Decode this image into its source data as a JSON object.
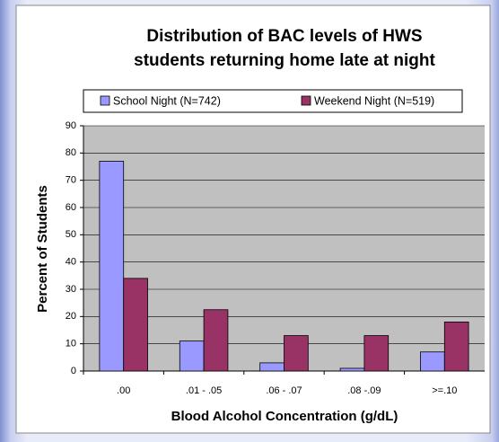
{
  "chart_data": {
    "type": "bar",
    "title": [
      "Distribution of BAC levels of HWS",
      "students returning home late at night"
    ],
    "categories": [
      ".00",
      ".01 - .05",
      ".06 - .07",
      ".08 -.09",
      ">=.10"
    ],
    "series": [
      {
        "name": "School Night (N=742)",
        "color": "#9999ff",
        "values": [
          77,
          11,
          3,
          1,
          7
        ]
      },
      {
        "name": "Weekend Night (N=519)",
        "color": "#993366",
        "values": [
          34,
          22.5,
          13,
          13,
          18
        ]
      }
    ],
    "x_label": "Blood Alcohol Concentration (g/dL)",
    "y_label": "Percent of Students",
    "ylim": [
      0,
      90
    ],
    "yticks": [
      0,
      10,
      20,
      30,
      40,
      50,
      60,
      70,
      80,
      90
    ],
    "grid": true,
    "legend": "top"
  }
}
